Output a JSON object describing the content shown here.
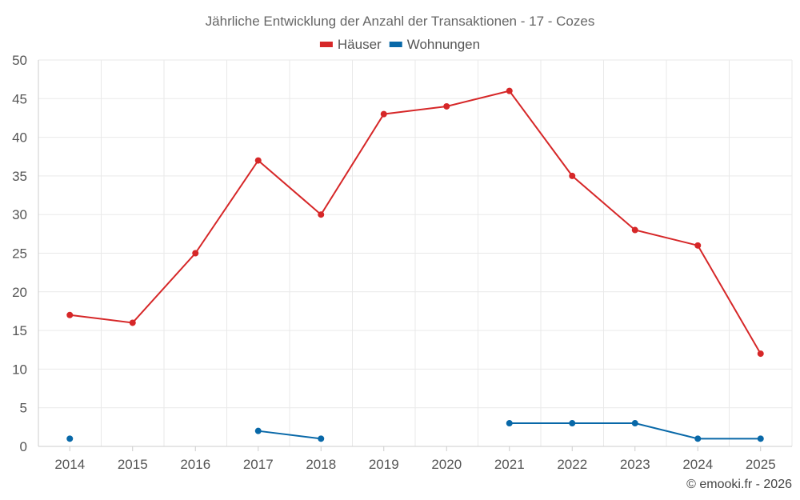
{
  "chart_data": {
    "type": "line",
    "title": "Jährliche Entwicklung der Anzahl der Transaktionen - 17 - Cozes",
    "categories": [
      "2014",
      "2015",
      "2016",
      "2017",
      "2018",
      "2019",
      "2020",
      "2021",
      "2022",
      "2023",
      "2024",
      "2025"
    ],
    "ylim": [
      0,
      50
    ],
    "yticks": [
      0,
      5,
      10,
      15,
      20,
      25,
      30,
      35,
      40,
      45,
      50
    ],
    "grid": true,
    "legend_position": "top-center",
    "series": [
      {
        "name": "Häuser",
        "color": "#d62728",
        "values": [
          17,
          16,
          25,
          37,
          30,
          43,
          44,
          46,
          35,
          28,
          26,
          12
        ]
      },
      {
        "name": "Wohnungen",
        "color": "#0868a8",
        "values": [
          1,
          null,
          null,
          2,
          1,
          null,
          null,
          3,
          3,
          3,
          1,
          1
        ]
      }
    ]
  },
  "credit": "© emooki.fr - 2026"
}
